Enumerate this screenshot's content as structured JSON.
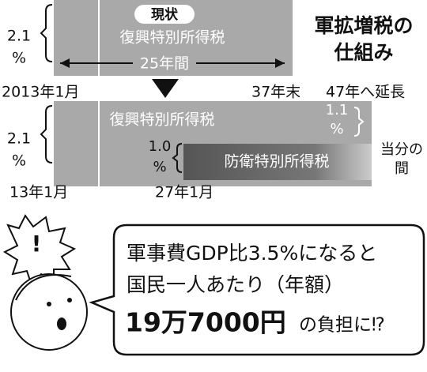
{
  "header": {
    "title_line1": "軍拡増税の",
    "title_line2": "仕組み"
  },
  "current": {
    "badge": "現状",
    "tax": "復興特別所得税",
    "span": "25年間",
    "rate": "2.1",
    "rate_unit": "%",
    "start": "2013年1月",
    "end": "37年末"
  },
  "revised": {
    "extension": "47年へ延長",
    "tax": "復興特別所得税",
    "reconstruction_rate": "1.1",
    "reconstruction_unit": "%",
    "defense_rate": "1.0",
    "defense_unit": "%",
    "defense_tax": "防衛特別所得税",
    "duration_line1": "当分の",
    "duration_line2": "間",
    "rate": "2.1",
    "rate_unit": "%",
    "start": "13年1月",
    "defense_start": "27年1月"
  },
  "callout": {
    "exclamation": "!",
    "line1": "軍事費GDP比3.5%になると",
    "line2": "国民一人あたり（年額）",
    "amount": "19万7000円",
    "suffix": "の負担に⁉"
  }
}
